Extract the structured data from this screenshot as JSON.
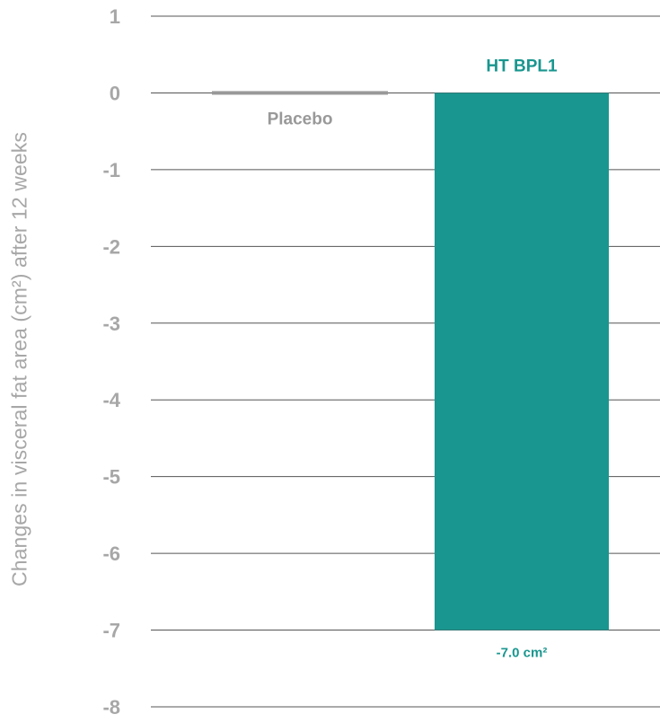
{
  "chart_data": {
    "type": "bar",
    "categories": [
      "Placebo",
      "HT BPL1"
    ],
    "values": [
      0,
      -7.0
    ],
    "value_labels": [
      "",
      "-7.0 cm²"
    ],
    "title": "",
    "xlabel": "",
    "ylabel": "Changes in visceral fat area (cm²) after 12 weeks",
    "ylim": [
      -8,
      1
    ],
    "yticks": [
      "1",
      "0",
      "-1",
      "-2",
      "-3",
      "-4",
      "-5",
      "-6",
      "-7",
      "-8"
    ],
    "grid": true,
    "legend": "none",
    "colors": {
      "placebo": "#999999",
      "treatment": "#19968f",
      "axis_text": "#a7a7a7",
      "grid": "#555555"
    }
  }
}
